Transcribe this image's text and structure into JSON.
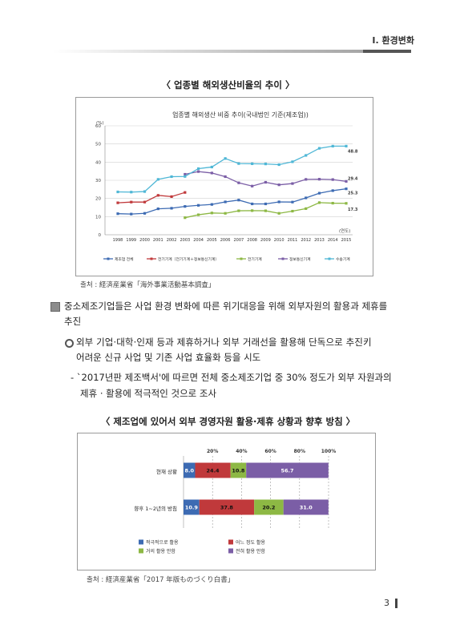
{
  "header": {
    "section_title": "Ⅰ. 환경변화"
  },
  "figure1": {
    "caption": "〈 업종별 해외생산비율의 추이 〉",
    "source": "출처 : 経済産業省「海外事業活動基本調査」",
    "chart_data": {
      "type": "line",
      "title": "업종별 해외생산 비중 추이(국내법인 기준(제조업))",
      "ylabel": "(%)",
      "xlabel": "(연도)",
      "ylim": [
        0,
        60
      ],
      "yticks": [
        "0",
        "10",
        "20",
        "30",
        "40",
        "50",
        "60"
      ],
      "categories": [
        "1998",
        "1999",
        "2000",
        "2001",
        "2002",
        "2003",
        "2004",
        "2005",
        "2006",
        "2007",
        "2008",
        "2009",
        "2010",
        "2011",
        "2012",
        "2013",
        "2014",
        "2015"
      ],
      "series": [
        {
          "name": "제조업 전체",
          "color": "#3d6bb3",
          "values": [
            11.6,
            11.4,
            11.8,
            14.3,
            14.6,
            15.6,
            16.2,
            16.7,
            18.1,
            19.1,
            17.0,
            17.0,
            18.1,
            18.0,
            20.3,
            22.9,
            24.3,
            25.3
          ],
          "end_label": "25.3"
        },
        {
          "name": "전기기계（전기기계＋정보통신기계）",
          "color": "#c0393b",
          "values": [
            17.6,
            18.0,
            18.0,
            21.7,
            21.0,
            23.3,
            null,
            null,
            null,
            null,
            null,
            null,
            null,
            null,
            null,
            null,
            null,
            null
          ],
          "end_label": ""
        },
        {
          "name": "전기기계",
          "color": "#8db844",
          "values": [
            null,
            null,
            null,
            null,
            null,
            9.4,
            11.0,
            12.0,
            11.8,
            13.2,
            13.3,
            13.2,
            11.8,
            13.0,
            14.4,
            17.7,
            17.4,
            17.3
          ],
          "end_label": "17.3"
        },
        {
          "name": "정보통신기계",
          "color": "#7b5ea6",
          "values": [
            null,
            null,
            null,
            null,
            null,
            33.3,
            34.8,
            34.0,
            32.0,
            28.6,
            26.8,
            28.9,
            27.5,
            28.2,
            30.5,
            30.6,
            30.4,
            29.4
          ],
          "end_label": "29.4"
        },
        {
          "name": "수송기계",
          "color": "#4fb7d6",
          "values": [
            23.6,
            23.5,
            23.8,
            30.5,
            32.0,
            32.1,
            36.4,
            37.3,
            42.0,
            39.2,
            39.1,
            39.0,
            38.6,
            40.2,
            43.7,
            47.6,
            48.8,
            48.8
          ],
          "end_label": "48.8"
        }
      ],
      "grid": true,
      "legend_position": "bottom"
    }
  },
  "paragraph": {
    "main": "중소제조기업들은 사업 환경 변화에 따른 위기대응을 위해 외부자원의 활용과 제휴를 추진",
    "main_line1": "중소제조기업들은 사업 환경 변화에 따른 위기대응을 위해 외부자원의 활용과 제휴를",
    "main_line2": "추진",
    "sub_line1": "외부 기업·대학·인재 등과 제휴하거나 외부 거래선을 활용해 단독으로 추진키",
    "sub_line2": "어려운 신규 사업 및 기존 사업 효율화 등을 시도",
    "dash_line1": "- `2017년판 제조백서'에 따르면 전체 중소제조기업 중 30% 정도가 외부 자원과의",
    "dash_line2": "제휴 · 활용에 적극적인 것으로 조사"
  },
  "figure2": {
    "caption": "〈 제조업에 있어서 외부 경영자원 활용·제휴 상황과 향후 방침 〉",
    "source": "출처 : 経済産業省「2017 年版ものづくり白書」",
    "chart_data": {
      "type": "bar",
      "orientation": "horizontal-stacked-percent",
      "xticks": [
        "20%",
        "40%",
        "60%",
        "80%",
        "100%"
      ],
      "categories": [
        "현재 상황",
        "향후 1~2년의 방침"
      ],
      "series": [
        {
          "name": "적극적으로 활용",
          "color": "#3d6bb3",
          "values": [
            8.0,
            10.9
          ]
        },
        {
          "name": "어느 정도 활용",
          "color": "#c0393b",
          "values": [
            24.4,
            37.8
          ]
        },
        {
          "name": "거의 활용 안함",
          "color": "#8db844",
          "values": [
            10.8,
            20.2
          ]
        },
        {
          "name": "전혀 활용 안함",
          "color": "#7b5ea6",
          "values": [
            56.7,
            31.0
          ]
        }
      ],
      "value_labels": [
        [
          "8.0",
          "24.4",
          "10.8",
          "56.7"
        ],
        [
          "10.9",
          "37.8",
          "20.2",
          "31.0"
        ]
      ],
      "legend_position": "bottom-left"
    }
  },
  "footer": {
    "page_number": "3"
  }
}
